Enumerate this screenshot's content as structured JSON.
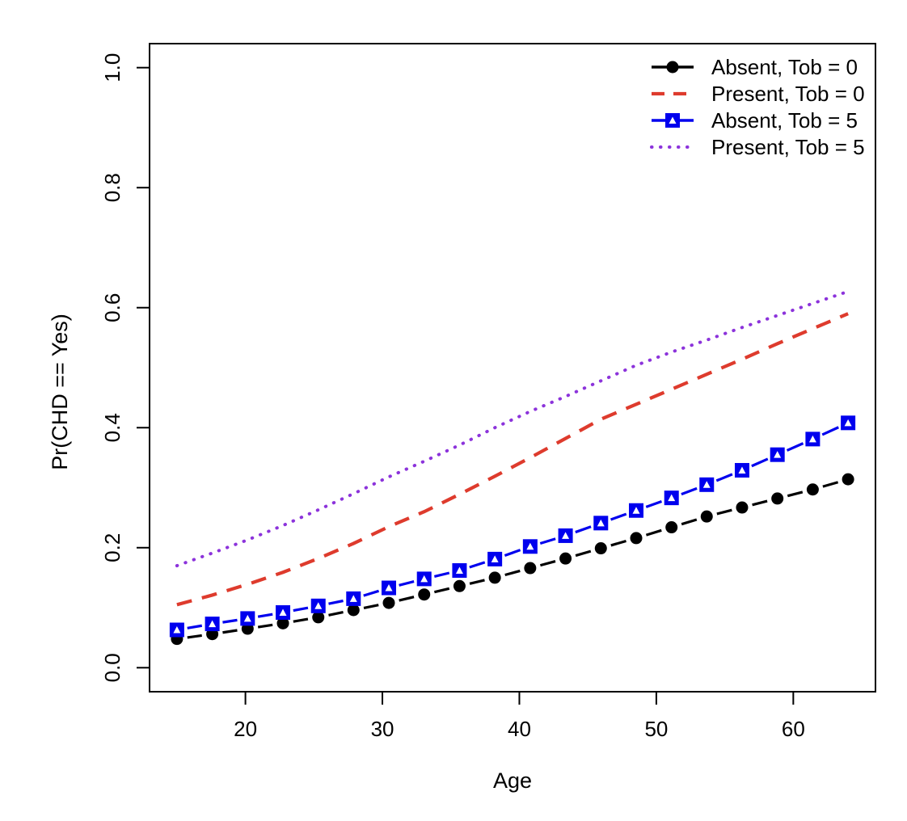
{
  "figure": {
    "background": "#ffffff",
    "xlabel": "Age",
    "ylabel": "Pr(CHD == Yes)"
  },
  "chart_data": {
    "type": "line",
    "title": "",
    "xlabel": "Age",
    "ylabel": "Pr(CHD == Yes)",
    "xlim": [
      13.0,
      66.0
    ],
    "ylim": [
      -0.04,
      1.04
    ],
    "x_tick_values": [
      20,
      30,
      40,
      50,
      60
    ],
    "x_tick_labels": [
      "20",
      "30",
      "40",
      "50",
      "60"
    ],
    "y_tick_values": [
      0.0,
      0.2,
      0.4,
      0.6,
      0.8,
      1.0
    ],
    "y_tick_labels": [
      "0.0",
      "0.2",
      "0.4",
      "0.6",
      "0.8",
      "1.0"
    ],
    "grid": false,
    "legend_position": "top-right",
    "x": [
      15,
      17.58,
      20.16,
      22.74,
      25.32,
      27.89,
      30.47,
      33.05,
      35.63,
      38.21,
      40.79,
      43.37,
      45.95,
      48.53,
      51.11,
      53.68,
      56.26,
      58.84,
      61.42,
      64
    ],
    "series": [
      {
        "name": "Absent, Tob = 0",
        "color": "#000000",
        "line_style": "broken-solid",
        "marker": "filled-circle",
        "values": [
          0.048,
          0.056,
          0.065,
          0.074,
          0.084,
          0.096,
          0.108,
          0.122,
          0.136,
          0.15,
          0.166,
          0.182,
          0.199,
          0.216,
          0.234,
          0.252,
          0.267,
          0.282,
          0.297,
          0.314
        ]
      },
      {
        "name": "Present, Tob = 0",
        "color": "#DE3B2D",
        "line_style": "dashed",
        "marker": "none",
        "values": [
          0.105,
          0.121,
          0.139,
          0.159,
          0.182,
          0.207,
          0.235,
          0.26,
          0.289,
          0.319,
          0.35,
          0.382,
          0.414,
          0.439,
          0.464,
          0.489,
          0.514,
          0.54,
          0.565,
          0.59
        ]
      },
      {
        "name": "Absent, Tob = 5",
        "color": "#0000EE",
        "line_style": "broken-solid",
        "marker": "filled-square",
        "values": [
          0.063,
          0.073,
          0.082,
          0.092,
          0.103,
          0.115,
          0.133,
          0.148,
          0.162,
          0.181,
          0.202,
          0.22,
          0.241,
          0.262,
          0.283,
          0.305,
          0.329,
          0.355,
          0.381,
          0.408
        ]
      },
      {
        "name": "Present, Tob = 5",
        "color": "#8C33DB",
        "line_style": "dotted",
        "marker": "none",
        "values": [
          0.17,
          0.191,
          0.213,
          0.237,
          0.263,
          0.29,
          0.318,
          0.344,
          0.371,
          0.4,
          0.427,
          0.452,
          0.478,
          0.504,
          0.526,
          0.546,
          0.567,
          0.587,
          0.607,
          0.627
        ]
      }
    ]
  }
}
